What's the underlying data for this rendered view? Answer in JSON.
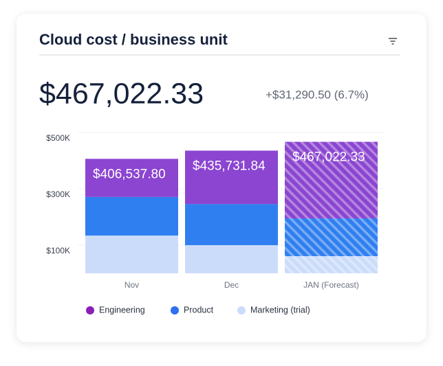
{
  "chart_data": {
    "type": "stacked_bar",
    "title": "Cloud cost / business unit",
    "headline": "$467,022.33",
    "change": "+$31,290.50 (6.7%)",
    "categories": [
      "Nov",
      "Dec",
      "JAN (Forecast)"
    ],
    "hatched": [
      false,
      false,
      true
    ],
    "series": [
      {
        "name": "Marketing (trial)",
        "color": "#cbdcfb",
        "values": [
          134000,
          100000,
          61000
        ]
      },
      {
        "name": "Product",
        "color": "#2f7ff0",
        "values": [
          137000,
          146000,
          134000
        ]
      },
      {
        "name": "Engineering",
        "color": "#8b45d0",
        "values": [
          135537.8,
          189731.84,
          272022.33
        ]
      }
    ],
    "totals": [
      406537.8,
      435731.84,
      467022.33
    ],
    "value_labels": [
      "$406,537.80",
      "$435,731.84",
      "$467,022.33"
    ],
    "legend_order": [
      2,
      1,
      0
    ],
    "legend_colors": [
      "#8a1fb8",
      "#2f6ff0",
      "#cbdcfb"
    ],
    "ylim": [
      0,
      500000
    ],
    "yticks": [
      {
        "value": 100000,
        "label": "$100K"
      },
      {
        "value": 300000,
        "label": "$300K"
      },
      {
        "value": 500000,
        "label": "$500K"
      }
    ],
    "grid": true
  }
}
